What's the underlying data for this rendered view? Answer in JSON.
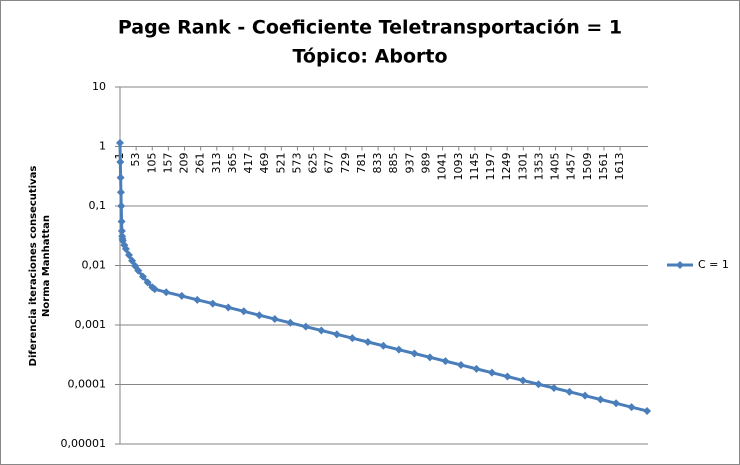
{
  "chart_data": {
    "type": "line",
    "title_lines": [
      "Page Rank - Coeficiente Teletransportación = 1",
      "Tópico: Aborto"
    ],
    "ylabel_lines": [
      "Diferencia iteraciones consecutivas",
      "Norma Manhattan"
    ],
    "log_scale_y": true,
    "grid": true,
    "legend": "right",
    "x_axis_crosses_at": 1,
    "xlim": [
      1,
      1703
    ],
    "xticks": [
      1,
      53,
      105,
      157,
      209,
      261,
      313,
      365,
      417,
      469,
      521,
      573,
      625,
      677,
      729,
      781,
      833,
      885,
      937,
      989,
      1041,
      1093,
      1145,
      1197,
      1249,
      1301,
      1353,
      1405,
      1457,
      1509,
      1561,
      1613
    ],
    "ylim": [
      1e-05,
      10
    ],
    "yticks": [
      10,
      1,
      {
        "value": 0.1,
        "label": "0,1"
      },
      {
        "value": 0.01,
        "label": "0,01"
      },
      {
        "value": 0.001,
        "label": "0,001"
      },
      {
        "value": 0.0001,
        "label": "0,0001"
      },
      {
        "value": 1e-05,
        "label": "0,00001"
      }
    ],
    "series": [
      {
        "name": "C = 1",
        "color": "#4a7ebb",
        "x": [
          1,
          2,
          3,
          4,
          5,
          6,
          7,
          8,
          9,
          10,
          15,
          20,
          30,
          40,
          50,
          60,
          75,
          90,
          105,
          113,
          150,
          200,
          250,
          300,
          350,
          400,
          450,
          500,
          550,
          600,
          650,
          700,
          750,
          800,
          850,
          900,
          950,
          1000,
          1050,
          1100,
          1150,
          1200,
          1250,
          1300,
          1350,
          1400,
          1450,
          1500,
          1550,
          1600,
          1650,
          1700
        ],
        "values": [
          1.15,
          0.55,
          0.3,
          0.17,
          0.1,
          0.055,
          0.038,
          0.031,
          0.028,
          0.026,
          0.022,
          0.019,
          0.015,
          0.012,
          0.0098,
          0.0082,
          0.0065,
          0.0052,
          0.0043,
          0.004,
          0.00356,
          0.00308,
          0.00265,
          0.00229,
          0.00197,
          0.0017,
          0.00146,
          0.00126,
          0.00109,
          0.000938,
          0.000809,
          0.000697,
          0.000601,
          0.000518,
          0.000447,
          0.000385,
          0.000332,
          0.000286,
          0.000247,
          0.000213,
          0.000183,
          0.000158,
          0.000136,
          0.000117,
          0.000101,
          8.73e-05,
          7.53e-05,
          6.49e-05,
          5.6e-05,
          4.83e-05,
          4.16e-05,
          3.59e-05
        ]
      }
    ]
  }
}
